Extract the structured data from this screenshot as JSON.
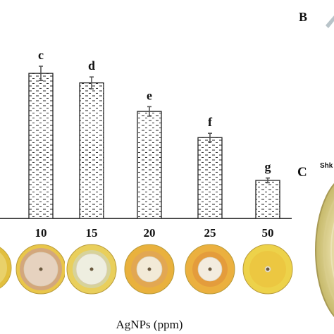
{
  "chart_data": {
    "type": "bar",
    "categories": [
      "10",
      "15",
      "20",
      "25",
      "50"
    ],
    "values": [
      61,
      57,
      45,
      34,
      16
    ],
    "errors": [
      3,
      2.5,
      2,
      1.8,
      1
    ],
    "significance": [
      "c",
      "d",
      "e",
      "f",
      "g"
    ],
    "ylim": [
      0,
      80
    ],
    "xlabel": "AgNPs (ppm)",
    "bar_fill": "dashed-hatch",
    "colors": {
      "bar_stroke": "#222222",
      "hatch": "#333333",
      "error_bar": "#555555"
    }
  },
  "panels": {
    "b": "B",
    "c": "C",
    "c_side_text": "Shk"
  },
  "plates": {
    "items": [
      {
        "category": "10",
        "ring": "#e9c64a",
        "inner": "#d3a77c",
        "colony": "#e6d2bf"
      },
      {
        "category": "15",
        "ring": "#e9cf5c",
        "inner": "#d7d39a",
        "colony": "#eeeee0"
      },
      {
        "category": "20",
        "ring": "#e9b13d",
        "inner": "#e2a752",
        "colony": "#f2ead7"
      },
      {
        "category": "25",
        "ring": "#ebb03f",
        "inner": "#e49c3c",
        "colony": "#f3ecdf"
      },
      {
        "category": "50",
        "ring": "#edd24a",
        "inner": "#ecc741",
        "colony": "#f2f0e2"
      }
    ]
  }
}
